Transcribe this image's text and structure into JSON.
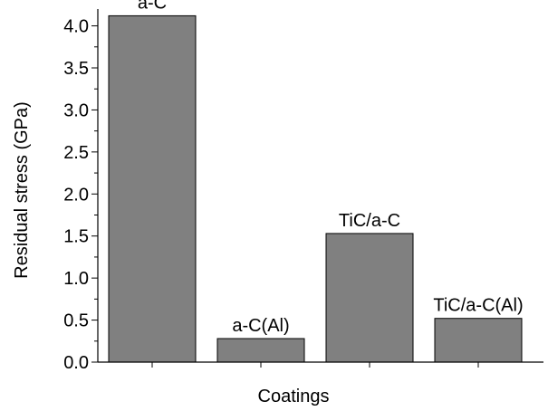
{
  "chart_data": {
    "type": "bar",
    "categories": [
      "a-C",
      "a-C(Al)",
      "TiC/a-C",
      "TiC/a-C(Al)"
    ],
    "values": [
      4.12,
      0.28,
      1.53,
      0.52
    ],
    "bar_labels": [
      "a-C",
      "a-C(Al)",
      "TiC/a-C",
      "TiC/a-C(Al)"
    ],
    "title": "",
    "xlabel": "Coatings",
    "ylabel": "Residual stress (GPa)",
    "ylim": [
      0,
      4.2
    ],
    "yticks": [
      0.0,
      0.5,
      1.0,
      1.5,
      2.0,
      2.5,
      3.0,
      3.5,
      4.0
    ],
    "ytick_labels": [
      "0.0",
      "0.5",
      "1.0",
      "1.5",
      "2.0",
      "2.5",
      "3.0",
      "3.5",
      "4.0"
    ],
    "grid": false,
    "legend": "none",
    "bar_color": "#808080",
    "bar_edge_color": "#000000"
  }
}
